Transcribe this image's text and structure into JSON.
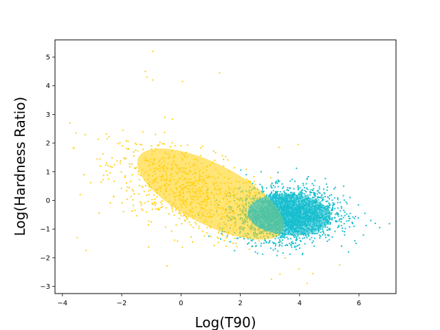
{
  "chart_data": {
    "type": "scatter",
    "title": "",
    "xlabel": "Log(T90)",
    "ylabel": "Log(Hardness Ratio)",
    "xlim": [
      -4.25,
      7.25
    ],
    "ylim": [
      -3.25,
      5.6
    ],
    "xticks": [
      -4,
      -2,
      0,
      2,
      4,
      6
    ],
    "yticks": [
      -3,
      -2,
      -1,
      0,
      1,
      2,
      3,
      4,
      5
    ],
    "grid": false,
    "legend": "none",
    "series": [
      {
        "color": "#ffd21a",
        "marker_size": 2,
        "cluster": {
          "count": 900,
          "mean": [
            0.3,
            0.3
          ],
          "sd": [
            1.35,
            0.85
          ],
          "correlation": -0.55
        },
        "outliers": [
          [
            -0.95,
            5.2
          ],
          [
            -1.2,
            4.5
          ],
          [
            -1.15,
            4.3
          ],
          [
            -0.95,
            4.2
          ],
          [
            0.05,
            4.15
          ],
          [
            1.3,
            4.45
          ],
          [
            -3.75,
            2.7
          ],
          [
            -0.55,
            2.9
          ],
          [
            -3.4,
            0.2
          ],
          [
            -3.5,
            -1.3
          ],
          [
            -3.2,
            -1.75
          ],
          [
            3.05,
            -2.75
          ],
          [
            4.25,
            -2.9
          ],
          [
            4.45,
            -2.55
          ],
          [
            5.35,
            -2.25
          ],
          [
            3.3,
            1.85
          ],
          [
            3.95,
            1.95
          ]
        ]
      },
      {
        "color": "#17becf",
        "marker_size": 2,
        "cluster": {
          "count": 2600,
          "mean": [
            3.6,
            -0.5
          ],
          "sd": [
            0.8,
            0.45
          ],
          "correlation": 0.05
        },
        "outliers": [
          [
            6.2,
            -0.45
          ],
          [
            6.4,
            -0.7
          ],
          [
            6.55,
            -0.8
          ],
          [
            6.7,
            -0.95
          ],
          [
            5.9,
            -1.5
          ],
          [
            2.2,
            0.9
          ],
          [
            2.7,
            1.0
          ]
        ]
      }
    ],
    "ellipses": [
      {
        "center": [
          1.0,
          0.22
        ],
        "semi_axes": [
          2.75,
          1.05
        ],
        "angle_deg": -28,
        "fill": "#ffd21a",
        "opacity": 0.6
      },
      {
        "center": [
          3.65,
          -0.5
        ],
        "semi_axes": [
          1.4,
          0.72
        ],
        "angle_deg": -4,
        "fill": "#17becf",
        "opacity": 0.6
      }
    ]
  }
}
